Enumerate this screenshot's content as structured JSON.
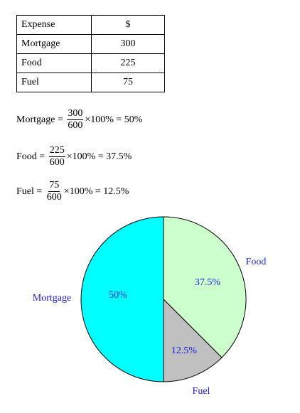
{
  "table": {
    "headers": [
      "Expense",
      "$"
    ],
    "rows": [
      {
        "expense": "Mortgage",
        "amount": "300"
      },
      {
        "expense": "Food",
        "amount": "225"
      },
      {
        "expense": "Fuel",
        "amount": "75"
      }
    ]
  },
  "equations": [
    {
      "label": "Mortgage",
      "numerator": "300",
      "denominator": "600",
      "tail": "×100% = 50%"
    },
    {
      "label": "Food",
      "numerator": "225",
      "denominator": "600",
      "tail": "×100% = 37.5%"
    },
    {
      "label": "Fuel",
      "numerator": "75",
      "denominator": "600",
      "tail": "×100% = 12.5%"
    }
  ],
  "chart_data": {
    "type": "pie",
    "title": "",
    "slices": [
      {
        "label": "Food",
        "value": 37.5,
        "pct_label": "37.5%",
        "color": "#ccffcc"
      },
      {
        "label": "Fuel",
        "value": 12.5,
        "pct_label": "12.5%",
        "color": "#c0c0c0"
      },
      {
        "label": "Mortgage",
        "value": 50,
        "pct_label": "50%",
        "color": "#00ffff"
      }
    ],
    "label_color": "#1a1ae0",
    "start": "12 o'clock",
    "direction": "clockwise"
  }
}
